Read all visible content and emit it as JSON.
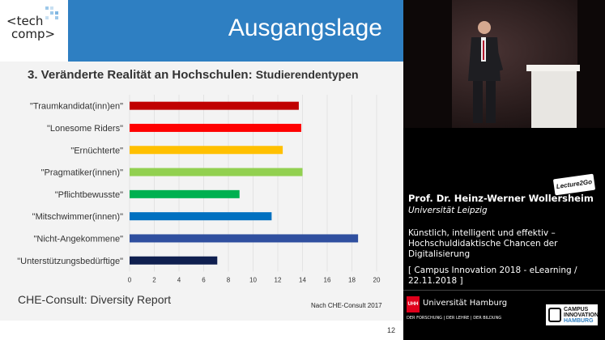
{
  "slide": {
    "logo": {
      "line1": "<tech",
      "line2": "comp>"
    },
    "title": "Ausgangslage",
    "subtitle_main": "3. Veränderte Realität an Hochschulen: ",
    "subtitle_sub": "Studierendentypen",
    "source_left": "CHE-Consult: Diversity Report",
    "source_right": "Nach CHE-Consult 2017",
    "page_number": "12"
  },
  "chart_data": {
    "type": "bar",
    "orientation": "horizontal",
    "categories": [
      "\"Traumkandidat(inn)en\"",
      "\"Lonesome Riders\"",
      "\"Ernüchterte\"",
      "\"Pragmatiker(innen)\"",
      "\"Pflichtbewusste\"",
      "\"Mitschwimmer(innen)\"",
      "\"Nicht-Angekommene\"",
      "\"Unterstützungsbedürftige\""
    ],
    "values": [
      13.7,
      13.9,
      12.4,
      14.0,
      8.9,
      11.5,
      18.5,
      7.1
    ],
    "colors": [
      "#c00000",
      "#ff0000",
      "#ffc000",
      "#92d050",
      "#00b050",
      "#0070c0",
      "#2f4f9f",
      "#0f1f4f"
    ],
    "xlim": [
      0,
      20
    ],
    "xticks": [
      "0",
      "2",
      "4",
      "6",
      "8",
      "10",
      "12",
      "14",
      "16",
      "18",
      "20"
    ],
    "grid": true
  },
  "panel": {
    "speaker_name": "Prof. Dr. Heinz-Werner Wollersheim",
    "speaker_affiliation": "Universität Leipzig",
    "talk_title": "Künstlich, intelligent und effektiv – Hochschuldidaktische Chancen der Digitalisierung",
    "event": "[ Campus Innovation 2018 - eLearning / 22.11.2018 ]",
    "badge": "Lecture2Go",
    "uhh_logo": "UHH",
    "uhh_name": "Universität Hamburg",
    "uhh_tagline": "DER FORSCHUNG | DER LEHRE | DER BILDUNG",
    "campus_line1": "CAMPUS",
    "campus_line2": "INNOVATION",
    "campus_line3": "HAMBURG"
  }
}
